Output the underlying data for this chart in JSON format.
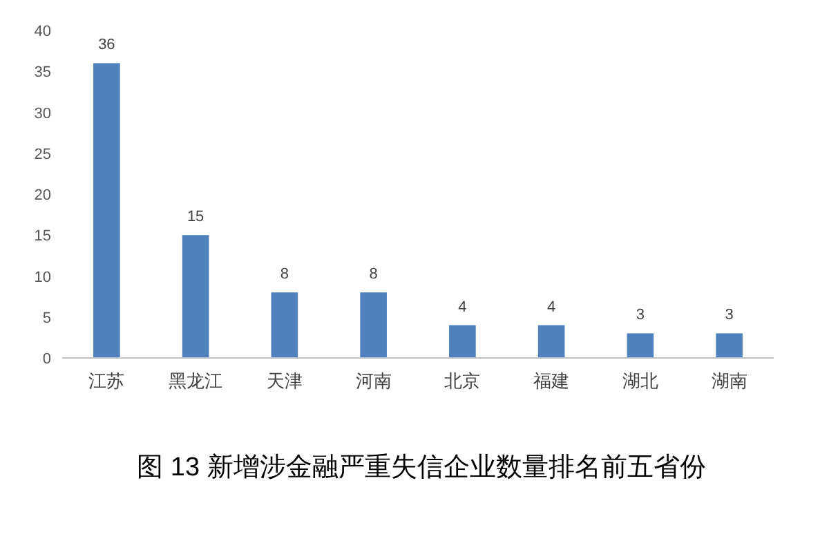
{
  "chart_data": {
    "type": "bar",
    "title": "图 13  新增涉金融严重失信企业数量排名前五省份",
    "categories": [
      "江苏",
      "黑龙江",
      "天津",
      "河南",
      "北京",
      "福建",
      "湖北",
      "湖南"
    ],
    "values": [
      36,
      15,
      8,
      8,
      4,
      4,
      3,
      3
    ],
    "color": "#4f81bd",
    "ylim": [
      0,
      40
    ],
    "yticks": [
      0,
      5,
      10,
      15,
      20,
      25,
      30,
      35,
      40
    ],
    "grid": false,
    "data_labels": true
  }
}
